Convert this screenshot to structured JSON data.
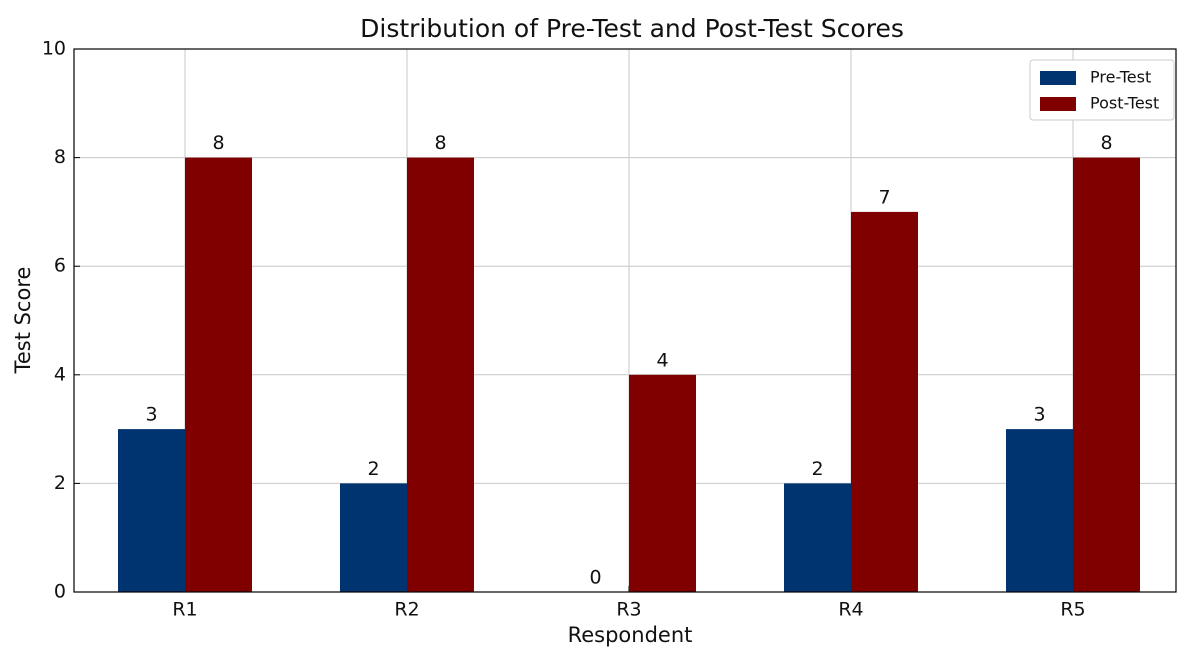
{
  "chart_data": {
    "type": "bar",
    "title": "Distribution of Pre-Test and Post-Test Scores",
    "x_label": "Respondent",
    "y_label": "Test Score",
    "categories": [
      "R1",
      "R2",
      "R3",
      "R4",
      "R5"
    ],
    "series": [
      {
        "name": "Pre-Test",
        "color": "#003471",
        "values": [
          3,
          2,
          0,
          2,
          3
        ]
      },
      {
        "name": "Post-Test",
        "color": "#800000",
        "values": [
          8,
          8,
          4,
          7,
          8
        ]
      }
    ],
    "ylim": [
      0,
      10
    ],
    "yticks": [
      0,
      2,
      4,
      6,
      8,
      10
    ],
    "grid": true,
    "legend": "upper right"
  }
}
